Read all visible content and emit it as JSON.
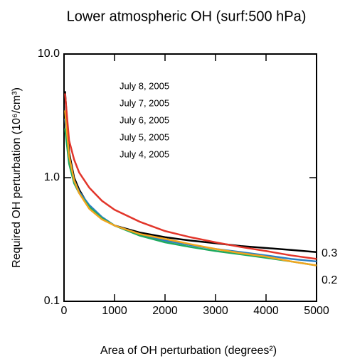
{
  "chart_data": {
    "type": "line",
    "title": "Lower atmospheric OH (surf:500 hPa)",
    "x_label": "Area of OH perturbation (degrees²)",
    "y_label": "Required OH perturbation (10⁶/cm³)",
    "log_y": true,
    "xlim": [
      0,
      5000
    ],
    "ylim": [
      0.1,
      10
    ],
    "xticks": [
      0,
      1000,
      2000,
      3000,
      4000,
      5000
    ],
    "yticks": [
      {
        "value": 10,
        "label": "10.0"
      },
      {
        "value": 1,
        "label": "1.0"
      },
      0.1
    ],
    "annotations": [
      "0.3",
      "0.2"
    ],
    "x": [
      20,
      100,
      200,
      300,
      500,
      750,
      1000,
      1500,
      2000,
      2500,
      3000,
      3500,
      4000,
      4500,
      5000
    ],
    "series": [
      {
        "name": "July 8, 2005",
        "color": "#000000",
        "values": [
          5.0,
          1.6,
          1.0,
          0.8,
          0.58,
          0.47,
          0.41,
          0.36,
          0.33,
          0.31,
          0.295,
          0.28,
          0.27,
          0.26,
          0.25
        ]
      },
      {
        "name": "July 7, 2005",
        "color": "#2a7fc4",
        "values": [
          3.0,
          1.4,
          0.95,
          0.77,
          0.6,
          0.48,
          0.41,
          0.35,
          0.31,
          0.285,
          0.265,
          0.25,
          0.235,
          0.22,
          0.21
        ]
      },
      {
        "name": "July 6, 2005",
        "color": "#1faa5f",
        "values": [
          2.5,
          1.3,
          0.9,
          0.75,
          0.58,
          0.47,
          0.41,
          0.34,
          0.3,
          0.275,
          0.255,
          0.24,
          0.225,
          0.21,
          0.195
        ]
      },
      {
        "name": "July 5, 2005",
        "color": "#f2a51e",
        "values": [
          3.5,
          1.5,
          0.95,
          0.75,
          0.56,
          0.46,
          0.41,
          0.35,
          0.32,
          0.29,
          0.265,
          0.245,
          0.23,
          0.21,
          0.195
        ]
      },
      {
        "name": "July 4, 2005",
        "color": "#e2362b",
        "values": [
          4.8,
          2.0,
          1.4,
          1.1,
          0.83,
          0.65,
          0.55,
          0.44,
          0.37,
          0.33,
          0.3,
          0.275,
          0.255,
          0.235,
          0.22
        ]
      }
    ]
  }
}
